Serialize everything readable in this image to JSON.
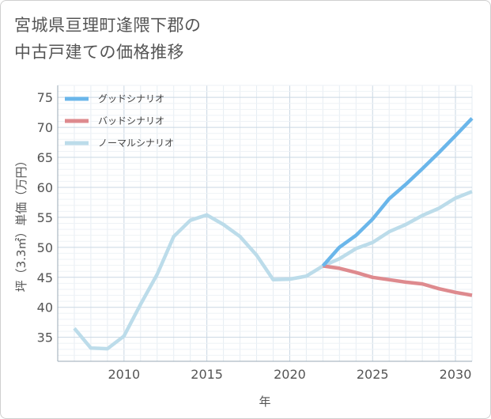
{
  "title_lines": [
    "宮城県亘理町逢隈下郡の",
    "中古戸建ての価格推移"
  ],
  "chart_data": {
    "type": "line",
    "title": "宮城県亘理町逢隈下郡の中古戸建ての価格推移",
    "xlabel": "年",
    "ylabel": "坪（3.3㎡）単価（万円）",
    "xlim": [
      2006,
      2031
    ],
    "ylim": [
      31,
      77
    ],
    "xticks": [
      2010,
      2015,
      2020,
      2025,
      2030
    ],
    "yticks": [
      35,
      40,
      45,
      50,
      55,
      60,
      65,
      70,
      75
    ],
    "grid": true,
    "legend_position": "top-left",
    "series": [
      {
        "name": "グッドシナリオ",
        "color": "#6ab6ea",
        "x": [
          2022,
          2023,
          2024,
          2025,
          2026,
          2027,
          2028,
          2029,
          2030,
          2031
        ],
        "y": [
          46.9,
          50.0,
          52.0,
          54.7,
          58.1,
          60.5,
          63.1,
          65.8,
          68.6,
          71.5
        ]
      },
      {
        "name": "バッドシナリオ",
        "color": "#de8a8e",
        "x": [
          2022,
          2023,
          2024,
          2025,
          2026,
          2027,
          2028,
          2029,
          2030,
          2031
        ],
        "y": [
          46.9,
          46.5,
          45.8,
          45.0,
          44.6,
          44.2,
          43.9,
          43.1,
          42.5,
          42.0
        ]
      },
      {
        "name": "ノーマルシナリオ",
        "color": "#bcdcea",
        "x": [
          2007,
          2008,
          2009,
          2010,
          2011,
          2012,
          2013,
          2014,
          2015,
          2016,
          2017,
          2018,
          2019,
          2020,
          2021,
          2022,
          2023,
          2024,
          2025,
          2026,
          2027,
          2028,
          2029,
          2030,
          2031
        ],
        "y": [
          36.5,
          33.2,
          33.1,
          35.2,
          40.5,
          45.5,
          51.8,
          54.5,
          55.4,
          53.8,
          51.8,
          48.7,
          44.6,
          44.7,
          45.2,
          46.9,
          48.1,
          49.8,
          50.8,
          52.6,
          53.8,
          55.3,
          56.5,
          58.2,
          59.3
        ]
      }
    ]
  }
}
